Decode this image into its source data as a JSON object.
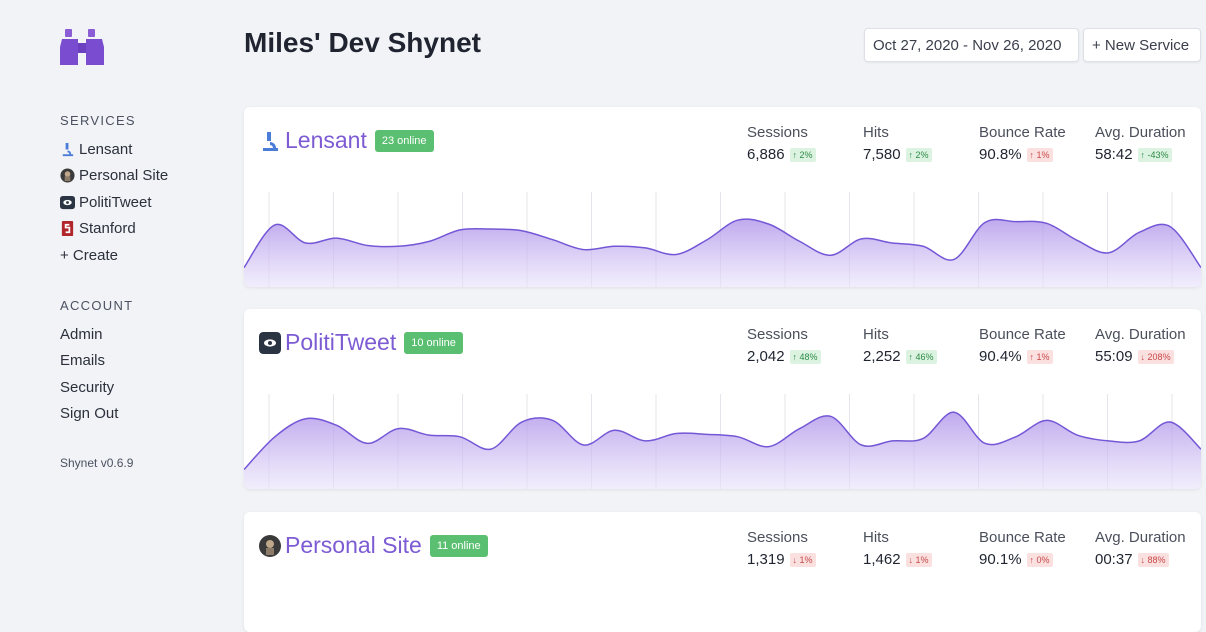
{
  "app": {
    "title": "Miles' Dev Shynet",
    "version": "Shynet v0.6.9",
    "accent_color": "#7c5bd3"
  },
  "sidebar": {
    "services_heading": "SERVICES",
    "services": [
      {
        "label": "Lensant",
        "icon": "microscope-icon"
      },
      {
        "label": "Personal Site",
        "icon": "avatar-icon"
      },
      {
        "label": "PolitiTweet",
        "icon": "eye-icon"
      },
      {
        "label": "Stanford",
        "icon": "stanford-logo-icon"
      },
      {
        "label": "+ Create",
        "icon": null
      }
    ],
    "account_heading": "ACCOUNT",
    "account": [
      {
        "label": "Admin"
      },
      {
        "label": "Emails"
      },
      {
        "label": "Security"
      },
      {
        "label": "Sign Out"
      }
    ]
  },
  "toolbar": {
    "date_range": "Oct 27, 2020 - Nov 26, 2020",
    "new_service": "+ New Service"
  },
  "stat_labels": {
    "sessions": "Sessions",
    "hits": "Hits",
    "bounce_rate": "Bounce Rate",
    "avg_duration": "Avg. Duration"
  },
  "services": [
    {
      "name": "Lensant",
      "online": "23 online",
      "sessions": "6,886",
      "sessions_delta": "↑ 2%",
      "sessions_dir": "up",
      "hits": "7,580",
      "hits_delta": "↑ 2%",
      "hits_dir": "up",
      "bounce": "90.8%",
      "bounce_delta": "↑ 1%",
      "bounce_dir": "down",
      "duration": "58:42",
      "duration_delta": "↑ -43%",
      "duration_dir": "up",
      "chart_data": {
        "type": "area",
        "values": [
          20,
          72,
          50,
          56,
          47,
          46,
          52,
          66,
          67,
          65,
          54,
          42,
          46,
          44,
          36,
          54,
          78,
          73,
          52,
          35,
          55,
          50,
          46,
          30,
          75,
          76,
          74,
          53,
          38,
          63,
          70,
          20
        ]
      }
    },
    {
      "name": "PolitiTweet",
      "online": "10 online",
      "sessions": "2,042",
      "sessions_delta": "↑ 48%",
      "sessions_dir": "up",
      "hits": "2,252",
      "hits_delta": "↑ 46%",
      "hits_dir": "up",
      "bounce": "90.4%",
      "bounce_delta": "↑ 1%",
      "bounce_dir": "down",
      "duration": "55:09",
      "duration_delta": "↓ 208%",
      "duration_dir": "down",
      "chart_data": {
        "type": "area",
        "values": [
          20,
          60,
          82,
          74,
          52,
          70,
          62,
          60,
          45,
          78,
          80,
          50,
          68,
          55,
          64,
          63,
          60,
          48,
          70,
          85,
          50,
          55,
          58,
          90,
          52,
          60,
          80,
          62,
          55,
          55,
          78,
          45
        ]
      }
    },
    {
      "name": "Personal Site",
      "online": "11 online",
      "sessions": "1,319",
      "sessions_delta": "↓ 1%",
      "sessions_dir": "down",
      "hits": "1,462",
      "hits_delta": "↓ 1%",
      "hits_dir": "down",
      "bounce": "90.1%",
      "bounce_delta": "↑ 0%",
      "bounce_dir": "down",
      "duration": "00:37",
      "duration_delta": "↓ 88%",
      "duration_dir": "down",
      "chart_data": {
        "type": "area",
        "values": []
      }
    }
  ]
}
